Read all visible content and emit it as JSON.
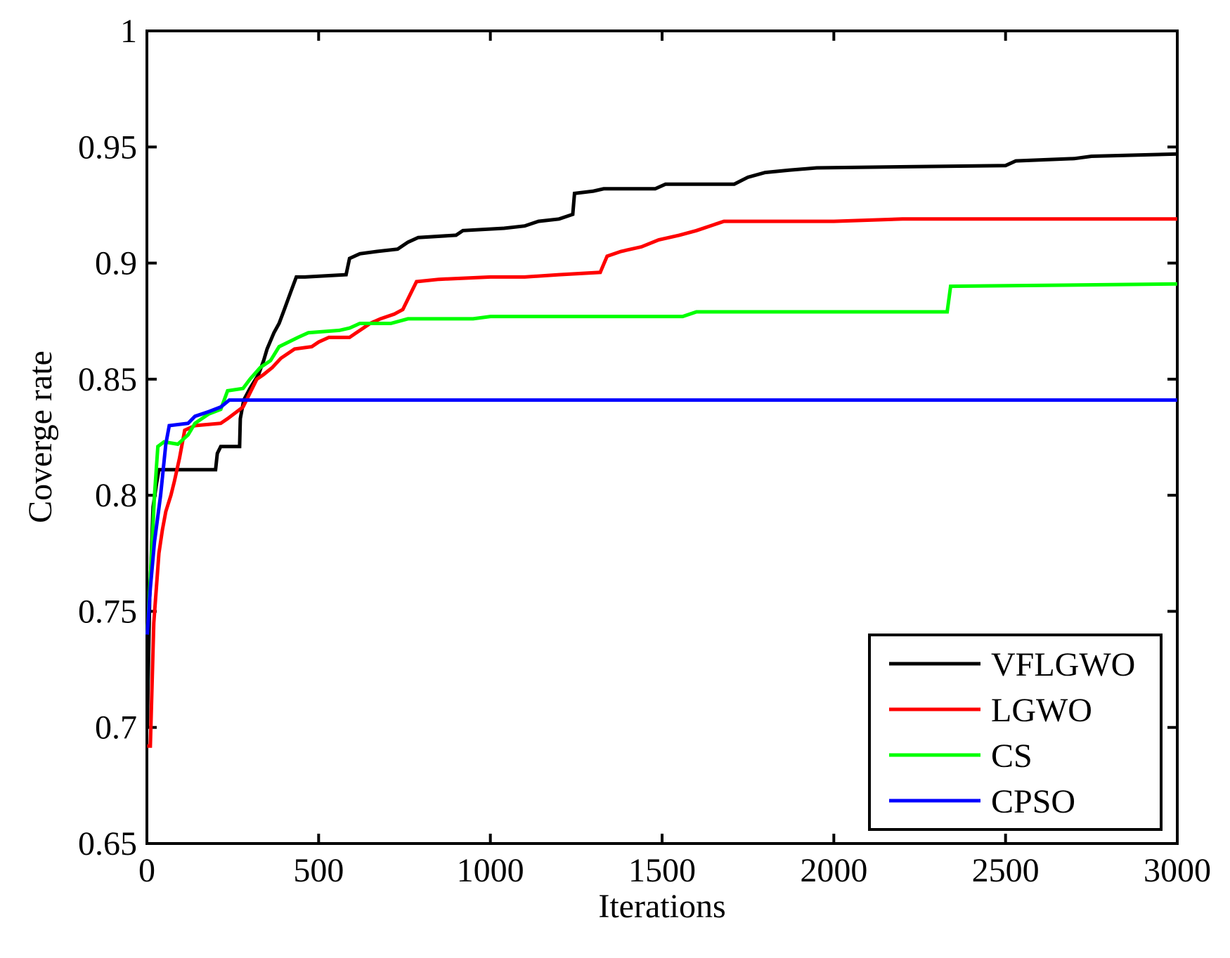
{
  "chart_data": {
    "type": "line",
    "xlabel": "Iterations",
    "ylabel": "Coverge rate",
    "xlim": [
      0,
      3000
    ],
    "ylim": [
      0.65,
      1
    ],
    "xticks": [
      "0",
      "500",
      "1000",
      "1500",
      "2000",
      "2500",
      "3000"
    ],
    "yticks": [
      "0.65",
      "0.7",
      "0.75",
      "0.8",
      "0.85",
      "0.9",
      "0.95",
      "1"
    ],
    "grid": false,
    "legend_position": "bottom-right",
    "series": [
      {
        "name": "VFLGWO",
        "color": "#000000",
        "points": [
          [
            1,
            0.7
          ],
          [
            8,
            0.755
          ],
          [
            18,
            0.795
          ],
          [
            28,
            0.805
          ],
          [
            35,
            0.811
          ],
          [
            200,
            0.811
          ],
          [
            205,
            0.818
          ],
          [
            215,
            0.821
          ],
          [
            270,
            0.821
          ],
          [
            272,
            0.833
          ],
          [
            282,
            0.841
          ],
          [
            300,
            0.846
          ],
          [
            325,
            0.852
          ],
          [
            340,
            0.858
          ],
          [
            350,
            0.863
          ],
          [
            370,
            0.87
          ],
          [
            385,
            0.874
          ],
          [
            400,
            0.88
          ],
          [
            420,
            0.888
          ],
          [
            435,
            0.894
          ],
          [
            460,
            0.894
          ],
          [
            580,
            0.895
          ],
          [
            590,
            0.902
          ],
          [
            620,
            0.904
          ],
          [
            670,
            0.905
          ],
          [
            730,
            0.906
          ],
          [
            760,
            0.909
          ],
          [
            790,
            0.911
          ],
          [
            900,
            0.912
          ],
          [
            920,
            0.914
          ],
          [
            1040,
            0.915
          ],
          [
            1100,
            0.916
          ],
          [
            1140,
            0.918
          ],
          [
            1200,
            0.919
          ],
          [
            1240,
            0.921
          ],
          [
            1245,
            0.93
          ],
          [
            1300,
            0.931
          ],
          [
            1330,
            0.932
          ],
          [
            1480,
            0.932
          ],
          [
            1510,
            0.934
          ],
          [
            1710,
            0.934
          ],
          [
            1750,
            0.937
          ],
          [
            1800,
            0.939
          ],
          [
            1870,
            0.94
          ],
          [
            1950,
            0.941
          ],
          [
            2500,
            0.942
          ],
          [
            2530,
            0.944
          ],
          [
            2700,
            0.945
          ],
          [
            2750,
            0.946
          ],
          [
            3000,
            0.947
          ]
        ]
      },
      {
        "name": "LGWO",
        "color": "#ff0000",
        "points": [
          [
            1,
            0.692
          ],
          [
            10,
            0.692
          ],
          [
            20,
            0.745
          ],
          [
            35,
            0.775
          ],
          [
            45,
            0.785
          ],
          [
            55,
            0.793
          ],
          [
            70,
            0.8
          ],
          [
            80,
            0.806
          ],
          [
            95,
            0.816
          ],
          [
            110,
            0.828
          ],
          [
            140,
            0.83
          ],
          [
            215,
            0.831
          ],
          [
            235,
            0.833
          ],
          [
            280,
            0.838
          ],
          [
            300,
            0.844
          ],
          [
            320,
            0.85
          ],
          [
            340,
            0.852
          ],
          [
            365,
            0.855
          ],
          [
            390,
            0.859
          ],
          [
            430,
            0.863
          ],
          [
            480,
            0.864
          ],
          [
            500,
            0.866
          ],
          [
            530,
            0.868
          ],
          [
            590,
            0.868
          ],
          [
            610,
            0.87
          ],
          [
            650,
            0.874
          ],
          [
            680,
            0.876
          ],
          [
            720,
            0.878
          ],
          [
            745,
            0.88
          ],
          [
            765,
            0.886
          ],
          [
            785,
            0.892
          ],
          [
            850,
            0.893
          ],
          [
            1000,
            0.894
          ],
          [
            1100,
            0.894
          ],
          [
            1200,
            0.895
          ],
          [
            1320,
            0.896
          ],
          [
            1340,
            0.903
          ],
          [
            1380,
            0.905
          ],
          [
            1440,
            0.907
          ],
          [
            1490,
            0.91
          ],
          [
            1550,
            0.912
          ],
          [
            1600,
            0.914
          ],
          [
            1640,
            0.916
          ],
          [
            1680,
            0.918
          ],
          [
            1800,
            0.918
          ],
          [
            2000,
            0.918
          ],
          [
            2200,
            0.919
          ],
          [
            3000,
            0.919
          ]
        ]
      },
      {
        "name": "CS",
        "color": "#00ff00",
        "points": [
          [
            1,
            0.74
          ],
          [
            12,
            0.77
          ],
          [
            22,
            0.8
          ],
          [
            32,
            0.821
          ],
          [
            50,
            0.823
          ],
          [
            90,
            0.822
          ],
          [
            120,
            0.826
          ],
          [
            140,
            0.831
          ],
          [
            180,
            0.835
          ],
          [
            215,
            0.837
          ],
          [
            235,
            0.845
          ],
          [
            280,
            0.846
          ],
          [
            300,
            0.85
          ],
          [
            330,
            0.855
          ],
          [
            360,
            0.858
          ],
          [
            385,
            0.864
          ],
          [
            440,
            0.868
          ],
          [
            470,
            0.87
          ],
          [
            560,
            0.871
          ],
          [
            590,
            0.872
          ],
          [
            620,
            0.874
          ],
          [
            710,
            0.874
          ],
          [
            760,
            0.876
          ],
          [
            950,
            0.876
          ],
          [
            1000,
            0.877
          ],
          [
            1560,
            0.877
          ],
          [
            1600,
            0.879
          ],
          [
            2330,
            0.879
          ],
          [
            2340,
            0.89
          ],
          [
            3000,
            0.891
          ]
        ]
      },
      {
        "name": "CPSO",
        "color": "#0000ff",
        "points": [
          [
            1,
            0.74
          ],
          [
            10,
            0.76
          ],
          [
            22,
            0.78
          ],
          [
            40,
            0.8
          ],
          [
            55,
            0.822
          ],
          [
            65,
            0.83
          ],
          [
            120,
            0.831
          ],
          [
            140,
            0.834
          ],
          [
            180,
            0.836
          ],
          [
            215,
            0.838
          ],
          [
            240,
            0.841
          ],
          [
            260,
            0.841
          ],
          [
            3000,
            0.841
          ]
        ]
      }
    ]
  }
}
